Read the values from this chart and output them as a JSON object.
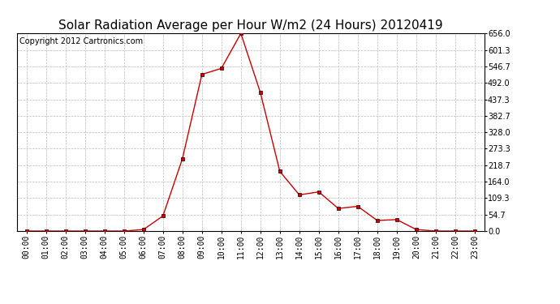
{
  "title": "Solar Radiation Average per Hour W/m2 (24 Hours) 20120419",
  "copyright_text": "Copyright 2012 Cartronics.com",
  "hours": [
    "00:00",
    "01:00",
    "02:00",
    "03:00",
    "04:00",
    "05:00",
    "06:00",
    "07:00",
    "08:00",
    "09:00",
    "10:00",
    "11:00",
    "12:00",
    "13:00",
    "14:00",
    "15:00",
    "16:00",
    "17:00",
    "18:00",
    "19:00",
    "20:00",
    "21:00",
    "22:00",
    "23:00"
  ],
  "values": [
    0.0,
    0.0,
    0.0,
    0.0,
    0.0,
    0.0,
    5.0,
    50.0,
    240.0,
    520.0,
    540.0,
    656.0,
    460.0,
    198.0,
    120.0,
    130.0,
    75.0,
    82.0,
    35.0,
    38.0,
    5.0,
    0.0,
    0.0,
    0.0
  ],
  "line_color": "#cc0000",
  "marker": "s",
  "marker_size": 2.5,
  "bg_color": "#ffffff",
  "plot_bg_color": "#ffffff",
  "grid_color": "#bbbbbb",
  "ylim": [
    0.0,
    656.0
  ],
  "yticks": [
    0.0,
    54.7,
    109.3,
    164.0,
    218.7,
    273.3,
    328.0,
    382.7,
    437.3,
    492.0,
    546.7,
    601.3,
    656.0
  ],
  "title_fontsize": 11,
  "copyright_fontsize": 7,
  "tick_fontsize": 7,
  "border_color": "#000000"
}
